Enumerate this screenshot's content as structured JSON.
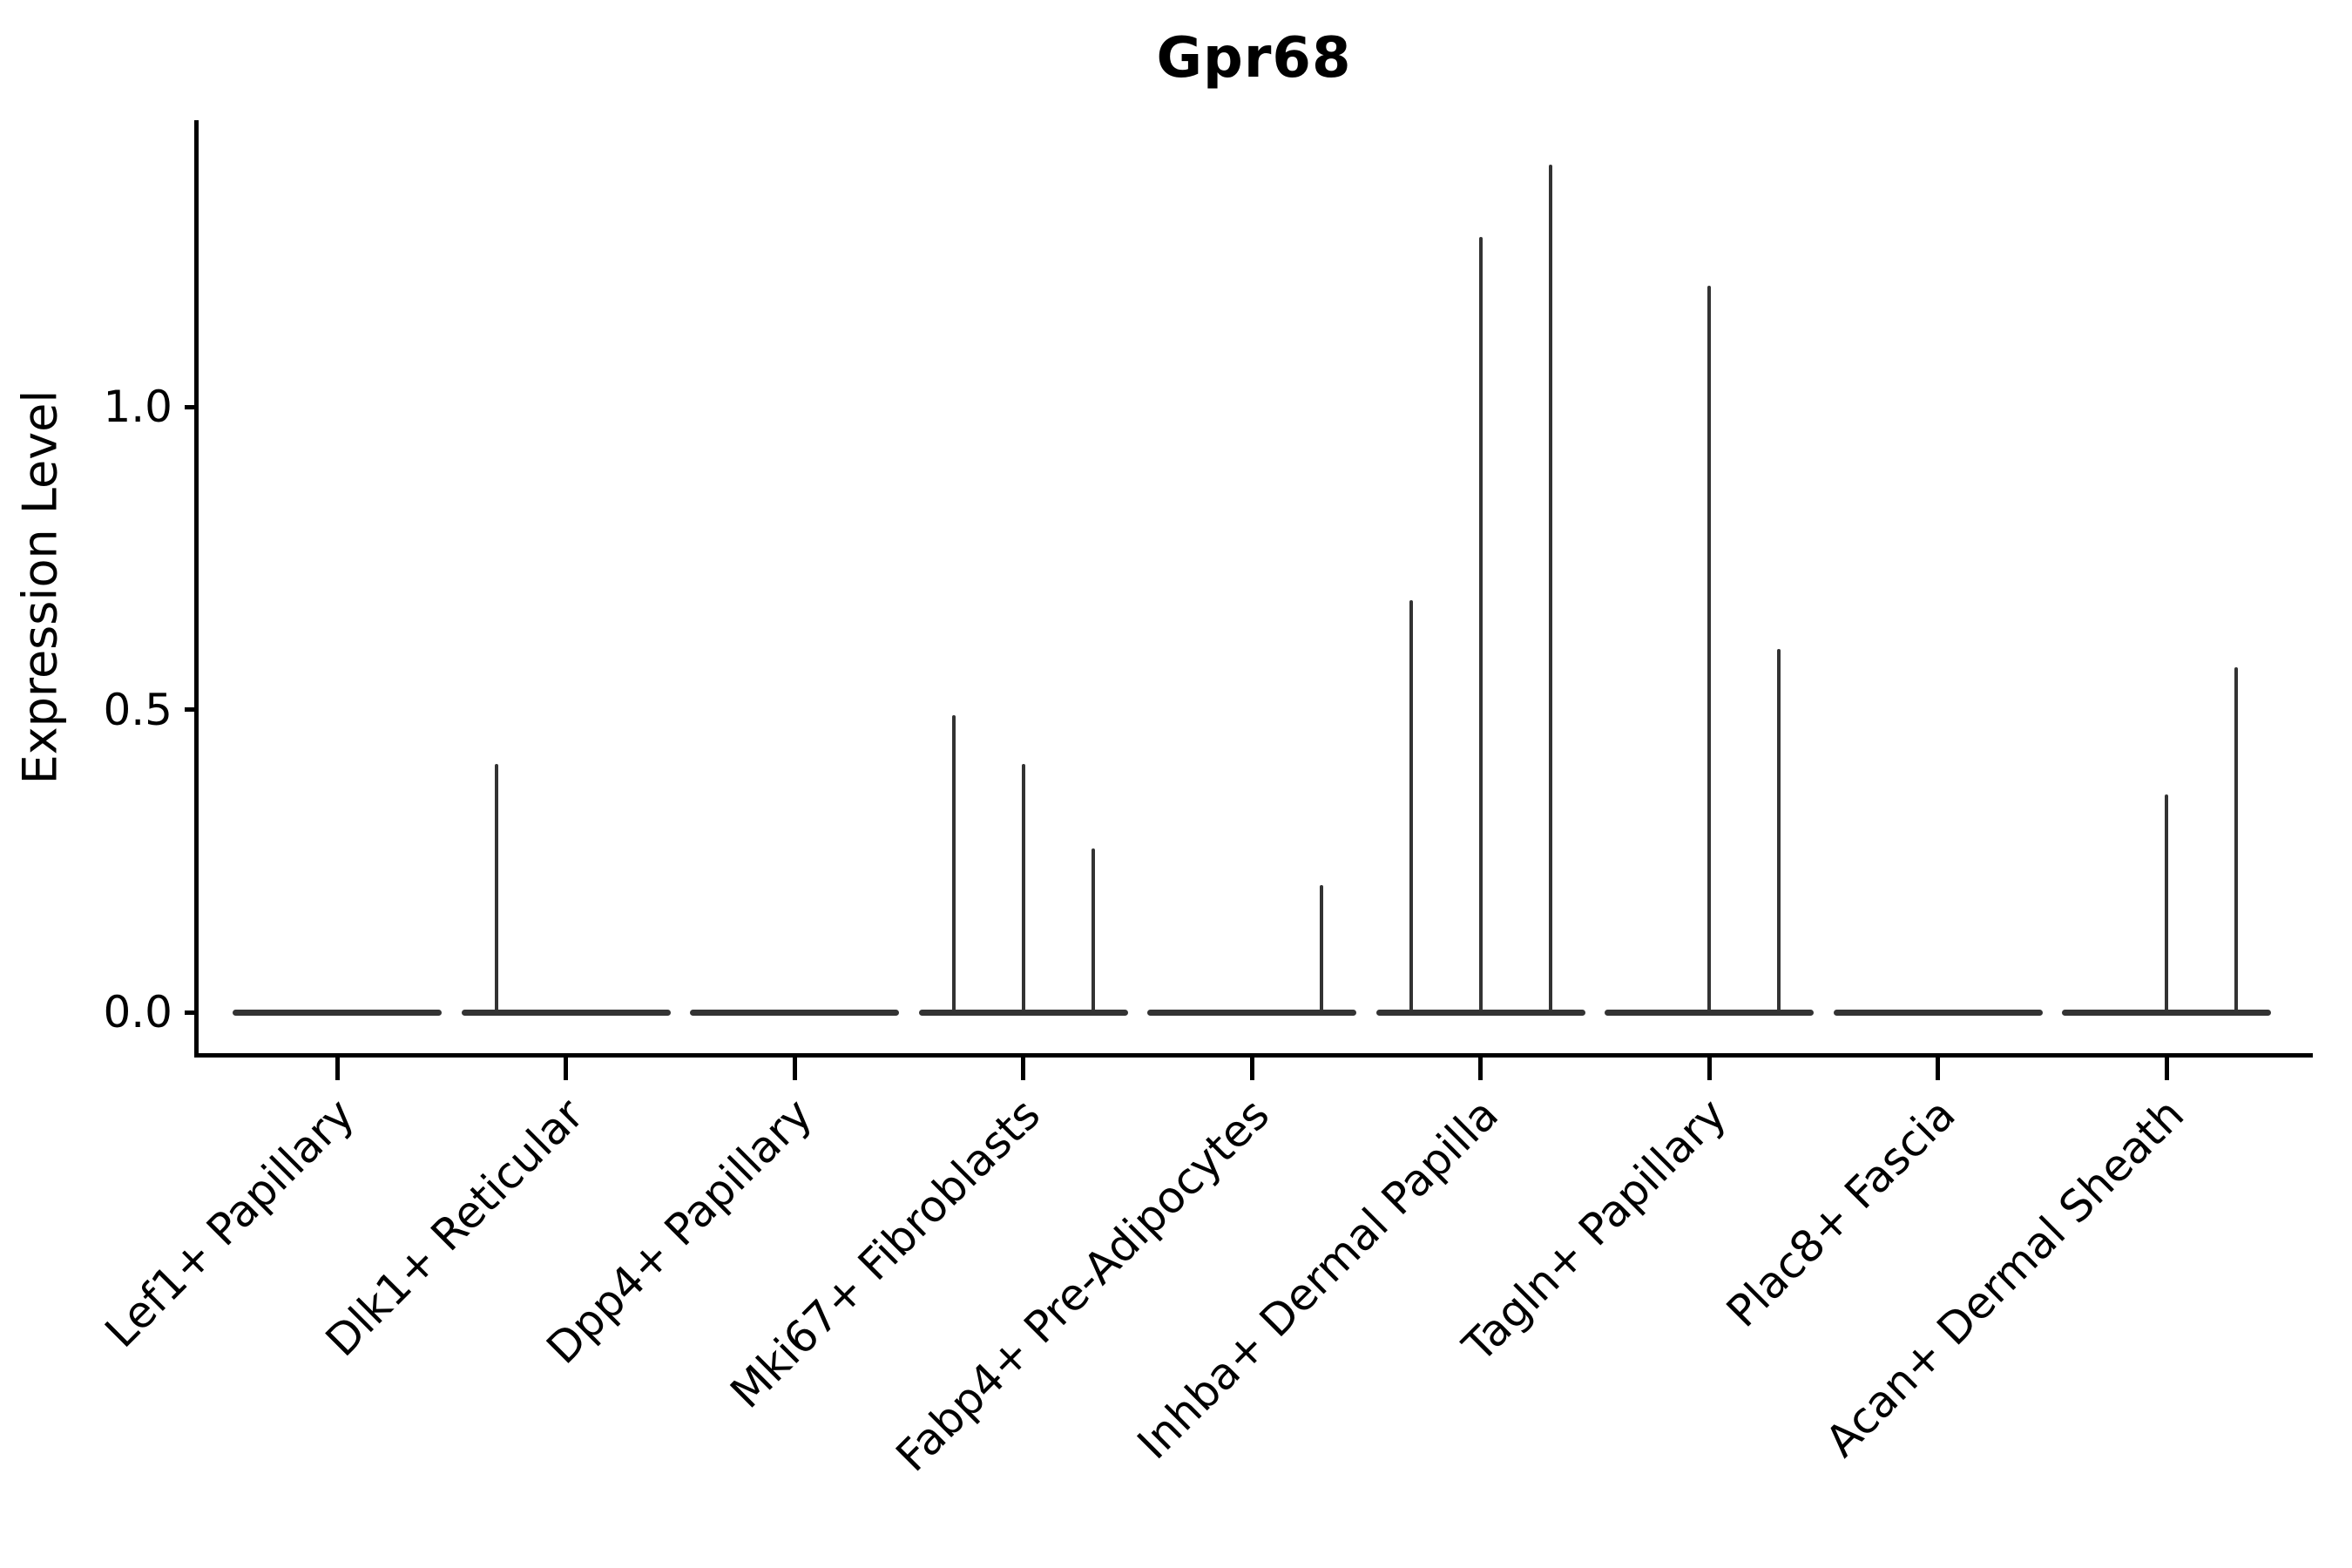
{
  "figure": {
    "background": "#ffffff"
  },
  "axes": {
    "axis_color": "#000000",
    "ytick_labels": [
      "0.0",
      "0.5",
      "1.0"
    ]
  },
  "chart_data": {
    "type": "violin",
    "title": "Gpr68",
    "xlabel": "",
    "ylabel": "Expression Level",
    "ylim": [
      -0.06,
      1.47
    ],
    "yticks": [
      0.0,
      0.5,
      1.0
    ],
    "ytick_labels": [
      "0.0",
      "0.5",
      "1.0"
    ],
    "grid": false,
    "legend_position": "none",
    "violin_color": "#333333",
    "groups_per_category": 3,
    "categories": [
      "Lef1+ Papillary",
      "Dlk1+ Reticular",
      "Dpp4+ Papillary",
      "Mki67+ Fibroblasts",
      "Fabp4+ Pre-Adipocytes",
      "Inhba+ Dermal Papilla",
      "Tagln+ Papillary",
      "Plac8+ Fascia",
      "Acan+ Dermal Sheath"
    ],
    "series": [
      {
        "category": "Lef1+ Papillary",
        "spike_heights": [
          0,
          0,
          0
        ]
      },
      {
        "category": "Dlk1+ Reticular",
        "spike_heights": [
          0.41,
          0,
          0
        ]
      },
      {
        "category": "Dpp4+ Papillary",
        "spike_heights": [
          0,
          0,
          0
        ]
      },
      {
        "category": "Mki67+ Fibroblasts",
        "spike_heights": [
          0.49,
          0.41,
          0.27
        ]
      },
      {
        "category": "Fabp4+ Pre-Adipocytes",
        "spike_heights": [
          0,
          0,
          0.21
        ]
      },
      {
        "category": "Inhba+ Dermal Papilla",
        "spike_heights": [
          0.68,
          1.28,
          1.4
        ]
      },
      {
        "category": "Tagln+ Papillary",
        "spike_heights": [
          0,
          1.2,
          0.6
        ]
      },
      {
        "category": "Plac8+ Fascia",
        "spike_heights": [
          0,
          0,
          0
        ]
      },
      {
        "category": "Acan+ Dermal Sheath",
        "spike_heights": [
          0,
          0.36,
          0.57
        ]
      }
    ]
  }
}
